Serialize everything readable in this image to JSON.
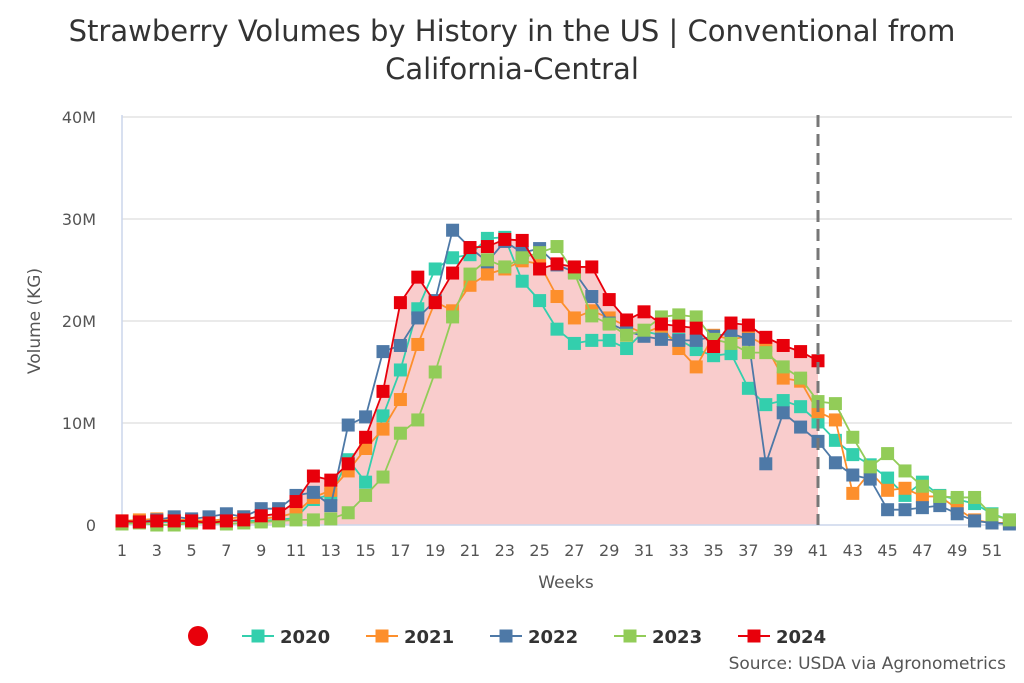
{
  "chart_data": {
    "type": "line",
    "title": "Strawberry Volumes by History in the US | Conventional from California-Central",
    "xlabel": "Weeks",
    "ylabel": "Volume (KG)",
    "ylim": [
      0,
      40000000
    ],
    "yticks": [
      "0",
      "10M",
      "20M",
      "30M",
      "40M"
    ],
    "xticks": [
      1,
      3,
      5,
      7,
      9,
      11,
      13,
      15,
      17,
      19,
      21,
      23,
      25,
      27,
      29,
      31,
      33,
      35,
      37,
      39,
      41,
      43,
      45,
      47,
      49,
      51
    ],
    "x_range": [
      1,
      52
    ],
    "grid": "horizontal",
    "legend_placement": "bottom",
    "current_week_marker": 41,
    "source": "Source: USDA via Agronometrics",
    "units": "millions of KG",
    "series": [
      {
        "name": "2020",
        "color": "#33cfad",
        "values": [
          0.3,
          0.3,
          0.3,
          0.3,
          0.3,
          0.3,
          0.4,
          0.4,
          0.4,
          0.5,
          0.7,
          2.5,
          3.0,
          6.4,
          4.2,
          10.7,
          15.2,
          21.2,
          25.1,
          26.2,
          26.5,
          28.1,
          28.2,
          23.9,
          22.0,
          19.2,
          17.8,
          18.1,
          18.1,
          17.3,
          19.0,
          18.6,
          18.2,
          17.2,
          16.6,
          16.8,
          13.4,
          11.8,
          12.2,
          11.6,
          10.1,
          8.3,
          6.9,
          5.9,
          4.6,
          2.9,
          4.2,
          2.9,
          2.5,
          2.1,
          1.1,
          0.5
        ]
      },
      {
        "name": "2021",
        "color": "#fd8f2c",
        "values": [
          0.4,
          0.5,
          0.6,
          0.5,
          0.5,
          0.4,
          0.6,
          0.8,
          0.6,
          0.8,
          1.2,
          2.7,
          3.4,
          5.3,
          7.5,
          9.4,
          12.3,
          17.7,
          21.9,
          21.0,
          23.5,
          24.6,
          25.1,
          25.9,
          25.6,
          22.4,
          20.3,
          21.0,
          20.3,
          19.5,
          18.8,
          19.5,
          17.3,
          15.5,
          18.6,
          18.2,
          18.5,
          17.6,
          14.4,
          14.1,
          11.1,
          10.3,
          3.1,
          5.2,
          3.4,
          3.6,
          2.8,
          2.8,
          1.6,
          0.5,
          0.2,
          0.2
        ]
      },
      {
        "name": "2022",
        "color": "#4e79a7",
        "values": [
          0.3,
          0.3,
          0.5,
          0.8,
          0.6,
          0.8,
          1.1,
          0.8,
          1.6,
          1.6,
          2.9,
          3.2,
          1.9,
          9.8,
          10.6,
          17.0,
          17.6,
          20.3,
          22.0,
          28.9,
          27.2,
          25.8,
          27.8,
          26.7,
          27.1,
          25.5,
          24.8,
          22.4,
          19.8,
          19.0,
          18.5,
          18.2,
          18.1,
          18.1,
          18.5,
          18.8,
          18.2,
          6.0,
          11.0,
          9.6,
          8.2,
          6.1,
          4.9,
          4.5,
          1.5,
          1.5,
          1.7,
          1.9,
          1.1,
          0.4,
          0.2,
          0.1
        ]
      },
      {
        "name": "2023",
        "color": "#92cc58",
        "values": [
          0.1,
          0.2,
          0.0,
          0.0,
          0.2,
          0.2,
          0.1,
          0.2,
          0.3,
          0.4,
          0.5,
          0.5,
          0.6,
          1.2,
          2.9,
          4.7,
          9.0,
          10.3,
          15.0,
          20.4,
          24.6,
          26.0,
          25.3,
          26.2,
          26.7,
          27.3,
          24.7,
          20.5,
          19.7,
          18.6,
          19.1,
          20.4,
          20.6,
          20.4,
          18.2,
          17.8,
          16.9,
          16.9,
          15.5,
          14.4,
          12.1,
          11.9,
          8.6,
          5.7,
          7.0,
          5.3,
          3.8,
          2.8,
          2.7,
          2.7,
          1.0,
          0.5
        ]
      },
      {
        "name": "2024",
        "color": "#e8000b",
        "area": true,
        "values": [
          0.4,
          0.3,
          0.4,
          0.4,
          0.4,
          0.2,
          0.4,
          0.5,
          0.9,
          1.1,
          2.3,
          4.8,
          4.4,
          6.0,
          8.6,
          13.1,
          21.8,
          24.3,
          21.8,
          24.7,
          27.2,
          27.3,
          28.0,
          27.9,
          25.1,
          25.6,
          25.3,
          25.3,
          22.1,
          20.1,
          20.9,
          19.7,
          19.5,
          19.3,
          17.5,
          19.8,
          19.6,
          18.4,
          17.6,
          17.0,
          16.1
        ]
      }
    ]
  }
}
